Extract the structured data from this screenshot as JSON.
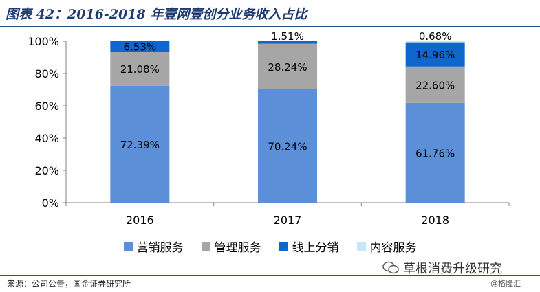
{
  "title": "图表 42：2016-2018 年壹网壹创分业务收入占比",
  "chart_data": {
    "type": "bar",
    "stacked": true,
    "categories": [
      "2016",
      "2017",
      "2018"
    ],
    "series": [
      {
        "name": "营销服务",
        "color": "#5b8fd8",
        "values": [
          72.39,
          70.24,
          61.76
        ],
        "labels": [
          "72.39%",
          "70.24%",
          "61.76%"
        ]
      },
      {
        "name": "管理服务",
        "color": "#a6a6a6",
        "values": [
          21.08,
          28.24,
          22.6
        ],
        "labels": [
          "21.08%",
          "28.24%",
          "22.60%"
        ]
      },
      {
        "name": "线上分销",
        "color": "#0f66cc",
        "values": [
          6.53,
          1.51,
          14.96
        ],
        "labels": [
          "6.53%",
          "1.51%",
          "14.96%"
        ]
      },
      {
        "name": "内容服务",
        "color": "#c7e6f7",
        "values": [
          0,
          0,
          0.68
        ],
        "labels": [
          "",
          "",
          "0.68%"
        ]
      }
    ],
    "yticks": [
      "0%",
      "20%",
      "40%",
      "60%",
      "80%",
      "100%"
    ],
    "ylim": [
      0,
      100
    ],
    "legend_position": "bottom"
  },
  "source": "来源：公司公告，国金证券研究所",
  "watermark": {
    "main": "草根消费升级研究",
    "sub": "@格隆汇"
  }
}
